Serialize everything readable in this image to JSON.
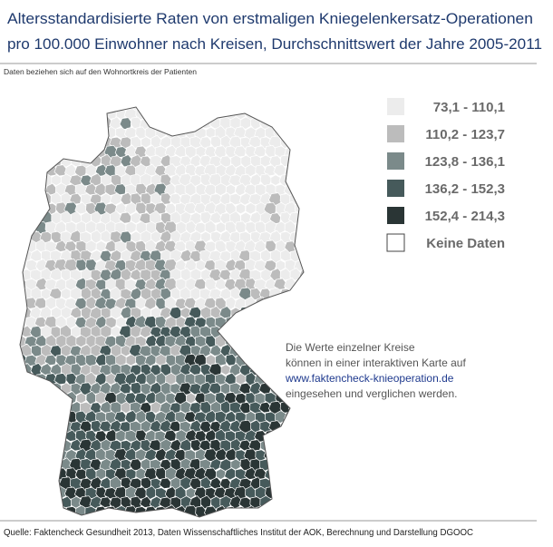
{
  "header": {
    "title_lines": [
      "Altersstandardisierte Raten von erstmaligen Kniegelenkersatz-Operationen",
      "pro 100.000 Einwohner nach Kreisen, Durchschnittswert der Jahre 2005-2011"
    ],
    "subtitle": "Daten beziehen sich auf den Wohnortkreis der Patienten"
  },
  "legend": [
    {
      "label": "73,1 - 110,1",
      "color": "#ececec"
    },
    {
      "label": "110,2 - 123,7",
      "color": "#bcbcbc"
    },
    {
      "label": "123,8 - 136,1",
      "color": "#7b8a8a"
    },
    {
      "label": "136,2 - 152,3",
      "color": "#465a5b"
    },
    {
      "label": "152,4 - 214,3",
      "color": "#2a3535"
    },
    {
      "label": "Keine Daten",
      "color": "#ffffff"
    }
  ],
  "note": {
    "lines": [
      "Die Werte einzelner Kreise",
      "können in einer interaktiven Karte auf"
    ],
    "link": "www.faktencheck-knieoperation.de",
    "last_line": "eingesehen und verglichen werden."
  },
  "source": "Quelle: Faktencheck Gesundheit 2013, Daten Wissenschaftliches Institut der AOK, Berechnung und Darstellung DGOOC"
}
